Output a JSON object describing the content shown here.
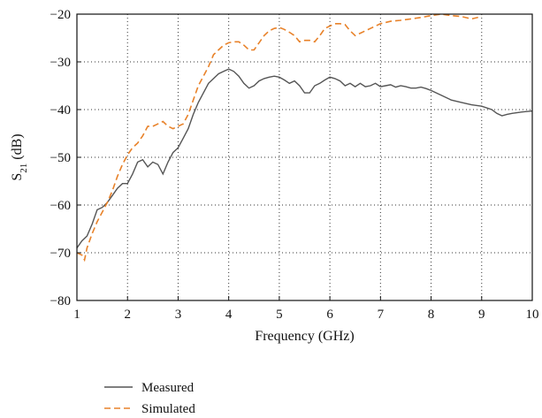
{
  "chart_data": {
    "type": "line",
    "title": "",
    "xlabel": "Frequency (GHz)",
    "ylabel": {
      "main": "S",
      "sub": "21",
      "unit": " (dB)"
    },
    "xlim": [
      1,
      10
    ],
    "ylim": [
      -80,
      -20
    ],
    "x_ticks": [
      1,
      2,
      3,
      4,
      5,
      6,
      7,
      8,
      9,
      10
    ],
    "y_ticks": [
      -20,
      -30,
      -40,
      -50,
      -60,
      -70,
      -80
    ],
    "x_tick_labels": [
      "1",
      "2",
      "3",
      "4",
      "5",
      "6",
      "7",
      "8",
      "9",
      "10"
    ],
    "y_tick_labels": [
      "−20",
      "−30",
      "−40",
      "−50",
      "−60",
      "−70",
      "−80"
    ],
    "grid": true,
    "legend_position": "bottom-left, below plot",
    "series": [
      {
        "name": "Measured",
        "color": "#555555",
        "dash": "solid",
        "points": [
          [
            1.0,
            -69
          ],
          [
            1.1,
            -67.5
          ],
          [
            1.2,
            -66.5
          ],
          [
            1.3,
            -64
          ],
          [
            1.4,
            -61
          ],
          [
            1.5,
            -60.5
          ],
          [
            1.6,
            -59.5
          ],
          [
            1.7,
            -58
          ],
          [
            1.8,
            -56.5
          ],
          [
            1.9,
            -55.5
          ],
          [
            2.0,
            -55.5
          ],
          [
            2.1,
            -53.5
          ],
          [
            2.2,
            -51
          ],
          [
            2.3,
            -50.5
          ],
          [
            2.4,
            -52
          ],
          [
            2.5,
            -51
          ],
          [
            2.6,
            -51.5
          ],
          [
            2.7,
            -53.5
          ],
          [
            2.8,
            -51
          ],
          [
            2.9,
            -49
          ],
          [
            3.0,
            -48
          ],
          [
            3.1,
            -46
          ],
          [
            3.2,
            -44
          ],
          [
            3.3,
            -41
          ],
          [
            3.4,
            -38.5
          ],
          [
            3.5,
            -36.5
          ],
          [
            3.6,
            -34.5
          ],
          [
            3.7,
            -33.5
          ],
          [
            3.8,
            -32.5
          ],
          [
            3.9,
            -32
          ],
          [
            4.0,
            -31.5
          ],
          [
            4.1,
            -32
          ],
          [
            4.2,
            -33
          ],
          [
            4.3,
            -34.5
          ],
          [
            4.4,
            -35.5
          ],
          [
            4.5,
            -35
          ],
          [
            4.6,
            -34
          ],
          [
            4.7,
            -33.5
          ],
          [
            4.8,
            -33.2
          ],
          [
            4.9,
            -33
          ],
          [
            5.0,
            -33.2
          ],
          [
            5.1,
            -33.8
          ],
          [
            5.2,
            -34.5
          ],
          [
            5.3,
            -34
          ],
          [
            5.4,
            -35
          ],
          [
            5.5,
            -36.5
          ],
          [
            5.6,
            -36.5
          ],
          [
            5.7,
            -35
          ],
          [
            5.8,
            -34.5
          ],
          [
            5.9,
            -33.8
          ],
          [
            6.0,
            -33.2
          ],
          [
            6.1,
            -33.5
          ],
          [
            6.2,
            -34
          ],
          [
            6.3,
            -35
          ],
          [
            6.4,
            -34.5
          ],
          [
            6.5,
            -35.2
          ],
          [
            6.6,
            -34.5
          ],
          [
            6.7,
            -35.2
          ],
          [
            6.8,
            -35
          ],
          [
            6.9,
            -34.5
          ],
          [
            7.0,
            -35.2
          ],
          [
            7.1,
            -35
          ],
          [
            7.2,
            -34.8
          ],
          [
            7.3,
            -35.3
          ],
          [
            7.4,
            -35
          ],
          [
            7.5,
            -35.2
          ],
          [
            7.6,
            -35.5
          ],
          [
            7.7,
            -35.5
          ],
          [
            7.8,
            -35.3
          ],
          [
            7.9,
            -35.6
          ],
          [
            8.0,
            -36
          ],
          [
            8.2,
            -37
          ],
          [
            8.4,
            -38
          ],
          [
            8.6,
            -38.5
          ],
          [
            8.8,
            -39
          ],
          [
            9.0,
            -39.3
          ],
          [
            9.2,
            -40
          ],
          [
            9.3,
            -40.8
          ],
          [
            9.4,
            -41.3
          ],
          [
            9.5,
            -41
          ],
          [
            9.6,
            -40.8
          ],
          [
            9.8,
            -40.5
          ],
          [
            10.0,
            -40.3
          ]
        ]
      },
      {
        "name": "Simulated",
        "color": "#E8822A",
        "dash": "dashed",
        "points": [
          [
            1.0,
            -70
          ],
          [
            1.1,
            -70.5
          ],
          [
            1.15,
            -71.5
          ],
          [
            1.2,
            -69
          ],
          [
            1.3,
            -66
          ],
          [
            1.4,
            -63.5
          ],
          [
            1.5,
            -61.5
          ],
          [
            1.6,
            -59.5
          ],
          [
            1.7,
            -57
          ],
          [
            1.8,
            -54
          ],
          [
            1.9,
            -51.5
          ],
          [
            2.0,
            -49.5
          ],
          [
            2.1,
            -48
          ],
          [
            2.2,
            -47
          ],
          [
            2.3,
            -45.5
          ],
          [
            2.4,
            -43.5
          ],
          [
            2.5,
            -43.5
          ],
          [
            2.6,
            -43
          ],
          [
            2.7,
            -42.5
          ],
          [
            2.8,
            -43.5
          ],
          [
            2.9,
            -44
          ],
          [
            3.0,
            -43.5
          ],
          [
            3.1,
            -43
          ],
          [
            3.2,
            -41
          ],
          [
            3.3,
            -38
          ],
          [
            3.4,
            -35
          ],
          [
            3.5,
            -33
          ],
          [
            3.6,
            -31
          ],
          [
            3.7,
            -28.5
          ],
          [
            3.8,
            -27.5
          ],
          [
            3.9,
            -26.5
          ],
          [
            4.0,
            -26
          ],
          [
            4.1,
            -25.8
          ],
          [
            4.2,
            -25.8
          ],
          [
            4.3,
            -26.5
          ],
          [
            4.4,
            -27.5
          ],
          [
            4.5,
            -27.5
          ],
          [
            4.6,
            -26
          ],
          [
            4.7,
            -24.5
          ],
          [
            4.8,
            -23.5
          ],
          [
            4.9,
            -23
          ],
          [
            5.0,
            -22.8
          ],
          [
            5.1,
            -23.2
          ],
          [
            5.2,
            -23.8
          ],
          [
            5.3,
            -24.5
          ],
          [
            5.4,
            -25.8
          ],
          [
            5.5,
            -25.5
          ],
          [
            5.6,
            -25.5
          ],
          [
            5.7,
            -25.8
          ],
          [
            5.8,
            -24.5
          ],
          [
            5.9,
            -23
          ],
          [
            6.0,
            -22.5
          ],
          [
            6.1,
            -22
          ],
          [
            6.2,
            -22
          ],
          [
            6.3,
            -22.2
          ],
          [
            6.4,
            -23.5
          ],
          [
            6.5,
            -24.5
          ],
          [
            6.6,
            -24
          ],
          [
            6.7,
            -23.5
          ],
          [
            6.8,
            -23
          ],
          [
            6.9,
            -22.5
          ],
          [
            7.0,
            -22
          ],
          [
            7.2,
            -21.5
          ],
          [
            7.4,
            -21.3
          ],
          [
            7.6,
            -21
          ],
          [
            7.8,
            -20.7
          ],
          [
            8.0,
            -20.3
          ],
          [
            8.2,
            -20
          ],
          [
            8.4,
            -20.3
          ],
          [
            8.6,
            -20.5
          ],
          [
            8.8,
            -21
          ],
          [
            9.0,
            -20.5
          ]
        ]
      }
    ]
  },
  "colors": {
    "measured": "#555555",
    "simulated": "#E8822A",
    "grid": "#333333",
    "frame": "#111111"
  }
}
